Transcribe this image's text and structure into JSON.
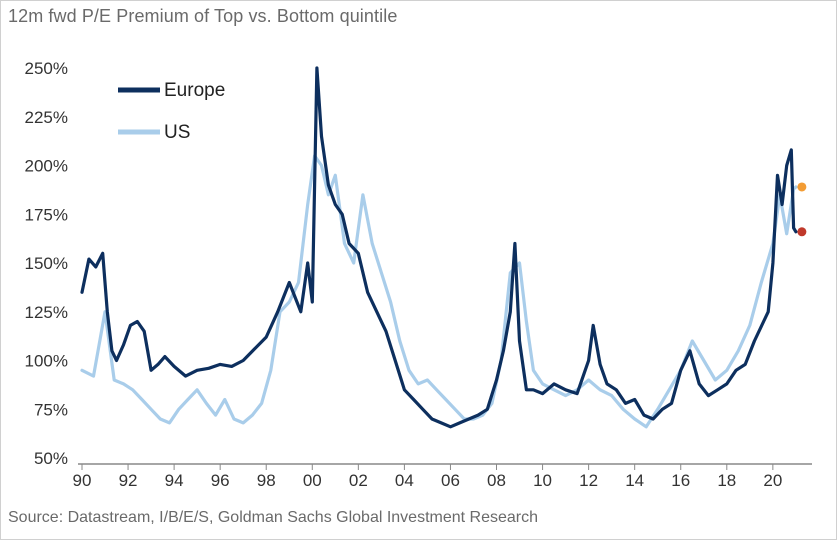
{
  "title": "12m fwd P/E Premium of Top vs. Bottom quintile",
  "source": "Source: Datastream, I/B/E/S, Goldman Sachs Global Investment Research",
  "colors": {
    "europe": "#0d2f5e",
    "us": "#a9cdea",
    "europe_last": "#c0392b",
    "us_last": "#f39c34"
  },
  "chart_data": {
    "type": "line",
    "title": "12m fwd P/E Premium of Top vs. Bottom quintile",
    "xlabel": "",
    "ylabel": "",
    "xlim": [
      1990,
      2021.7
    ],
    "ylim": [
      50,
      250
    ],
    "x_ticks": [
      "90",
      "92",
      "94",
      "96",
      "98",
      "00",
      "02",
      "04",
      "06",
      "08",
      "10",
      "12",
      "14",
      "16",
      "18",
      "20"
    ],
    "x_tick_values": [
      1990,
      1992,
      1994,
      1996,
      1998,
      2000,
      2002,
      2004,
      2006,
      2008,
      2010,
      2012,
      2014,
      2016,
      2018,
      2020
    ],
    "y_ticks": [
      "50%",
      "75%",
      "100%",
      "125%",
      "150%",
      "175%",
      "200%",
      "225%",
      "250%"
    ],
    "y_tick_values": [
      50,
      75,
      100,
      125,
      150,
      175,
      200,
      225,
      250
    ],
    "legend": {
      "position": "top-left"
    },
    "grid": false,
    "series": [
      {
        "name": "Europe",
        "x": [
          1990.0,
          1990.3,
          1990.6,
          1990.9,
          1991.1,
          1991.3,
          1991.5,
          1991.8,
          1992.1,
          1992.4,
          1992.7,
          1993.0,
          1993.3,
          1993.6,
          1994.0,
          1994.5,
          1995.0,
          1995.5,
          1996.0,
          1996.5,
          1997.0,
          1997.5,
          1998.0,
          1998.5,
          1999.0,
          1999.5,
          1999.8,
          2000.0,
          2000.2,
          2000.4,
          2000.7,
          2001.0,
          2001.3,
          2001.6,
          2002.0,
          2002.4,
          2002.8,
          2003.2,
          2003.6,
          2004.0,
          2004.4,
          2004.8,
          2005.2,
          2005.6,
          2006.0,
          2006.4,
          2006.8,
          2007.2,
          2007.6,
          2008.0,
          2008.3,
          2008.6,
          2008.8,
          2009.0,
          2009.3,
          2009.6,
          2010.0,
          2010.5,
          2011.0,
          2011.5,
          2012.0,
          2012.2,
          2012.5,
          2012.8,
          2013.2,
          2013.6,
          2014.0,
          2014.4,
          2014.8,
          2015.2,
          2015.6,
          2016.0,
          2016.4,
          2016.8,
          2017.2,
          2017.6,
          2018.0,
          2018.4,
          2018.8,
          2019.2,
          2019.6,
          2019.8,
          2020.0,
          2020.2,
          2020.4,
          2020.6,
          2020.8,
          2020.9,
          2021.0
        ],
        "values": [
          135,
          152,
          148,
          155,
          125,
          105,
          100,
          108,
          118,
          120,
          115,
          95,
          98,
          102,
          97,
          92,
          95,
          96,
          98,
          97,
          100,
          106,
          112,
          125,
          140,
          125,
          150,
          130,
          250,
          215,
          190,
          180,
          175,
          160,
          155,
          135,
          125,
          115,
          100,
          85,
          80,
          75,
          70,
          68,
          66,
          68,
          70,
          72,
          75,
          90,
          105,
          125,
          160,
          110,
          85,
          85,
          83,
          88,
          85,
          83,
          100,
          118,
          98,
          88,
          85,
          78,
          80,
          72,
          70,
          75,
          78,
          95,
          105,
          88,
          82,
          85,
          88,
          95,
          98,
          110,
          120,
          125,
          150,
          195,
          180,
          200,
          208,
          168,
          166
        ]
      },
      {
        "name": "US",
        "x": [
          1990.0,
          1990.5,
          1991.0,
          1991.4,
          1991.8,
          1992.2,
          1992.6,
          1993.0,
          1993.4,
          1993.8,
          1994.2,
          1994.6,
          1995.0,
          1995.4,
          1995.8,
          1996.2,
          1996.6,
          1997.0,
          1997.4,
          1997.8,
          1998.2,
          1998.6,
          1999.0,
          1999.4,
          1999.8,
          2000.1,
          2000.4,
          2000.7,
          2001.0,
          2001.4,
          2001.8,
          2002.2,
          2002.6,
          2003.0,
          2003.4,
          2003.8,
          2004.2,
          2004.6,
          2005.0,
          2005.4,
          2005.8,
          2006.2,
          2006.6,
          2007.0,
          2007.4,
          2007.8,
          2008.2,
          2008.6,
          2009.0,
          2009.3,
          2009.6,
          2010.0,
          2010.5,
          2011.0,
          2011.5,
          2012.0,
          2012.5,
          2013.0,
          2013.5,
          2014.0,
          2014.5,
          2015.0,
          2015.5,
          2016.0,
          2016.5,
          2017.0,
          2017.5,
          2018.0,
          2018.5,
          2019.0,
          2019.5,
          2020.0,
          2020.3,
          2020.6,
          2020.9,
          2021.0
        ],
        "values": [
          95,
          92,
          125,
          90,
          88,
          85,
          80,
          75,
          70,
          68,
          75,
          80,
          85,
          78,
          72,
          80,
          70,
          68,
          72,
          78,
          95,
          125,
          130,
          140,
          180,
          205,
          200,
          185,
          195,
          160,
          150,
          185,
          160,
          145,
          130,
          110,
          95,
          88,
          90,
          85,
          80,
          75,
          70,
          70,
          72,
          78,
          100,
          145,
          150,
          120,
          95,
          88,
          85,
          82,
          85,
          90,
          85,
          82,
          75,
          70,
          66,
          75,
          85,
          95,
          110,
          100,
          90,
          95,
          105,
          118,
          140,
          160,
          185,
          165,
          188,
          189
        ]
      }
    ]
  },
  "legend_items": [
    {
      "label": "Europe"
    },
    {
      "label": "US"
    }
  ]
}
